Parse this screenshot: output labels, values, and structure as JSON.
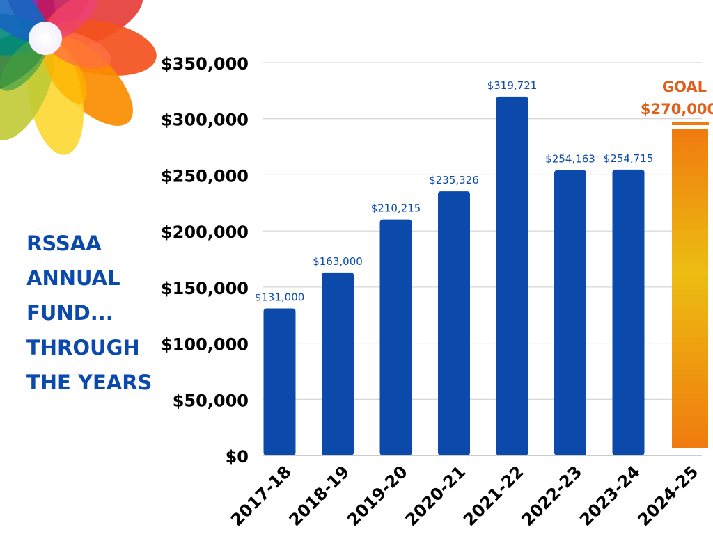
{
  "side_title": {
    "lines": [
      "RSSAA",
      "ANNUAL",
      "FUND...",
      "THROUGH",
      "THE YEARS"
    ]
  },
  "decoration": {
    "icon": "flower-icon"
  },
  "colors": {
    "bar": "#0b4aab",
    "goal_text": "#e0601b",
    "goal_gradient_top": "#f07b0f",
    "goal_gradient_mid": "#ecbd12",
    "goal_gradient_bottom": "#f07b0f",
    "grid": "#cccccc",
    "axis_label": "#000000"
  },
  "chart_data": {
    "type": "bar",
    "title": "",
    "xlabel": "",
    "ylabel": "",
    "categories": [
      "2017-18",
      "2018-19",
      "2019-20",
      "2020-21",
      "2021-22",
      "2022-23",
      "2023-24",
      "2024-25"
    ],
    "values": [
      131000,
      163000,
      210215,
      235326,
      319721,
      254163,
      254715,
      null
    ],
    "data_labels": [
      "$131,000",
      "$163,000",
      "$210,215",
      "$235,326",
      "$319,721",
      "$254,163",
      "$254,715",
      ""
    ],
    "ylim": [
      0,
      350000
    ],
    "yticks": [
      0,
      50000,
      100000,
      150000,
      200000,
      250000,
      300000,
      350000
    ],
    "ytick_labels": [
      "$0",
      "$50,000",
      "$100,000",
      "$150,000",
      "$200,000",
      "$250,000",
      "$300,000",
      "$350,000"
    ],
    "grid": true,
    "goal": {
      "category": "2024-25",
      "value": 270000,
      "label": "GOAL",
      "value_label": "$270,000"
    }
  }
}
